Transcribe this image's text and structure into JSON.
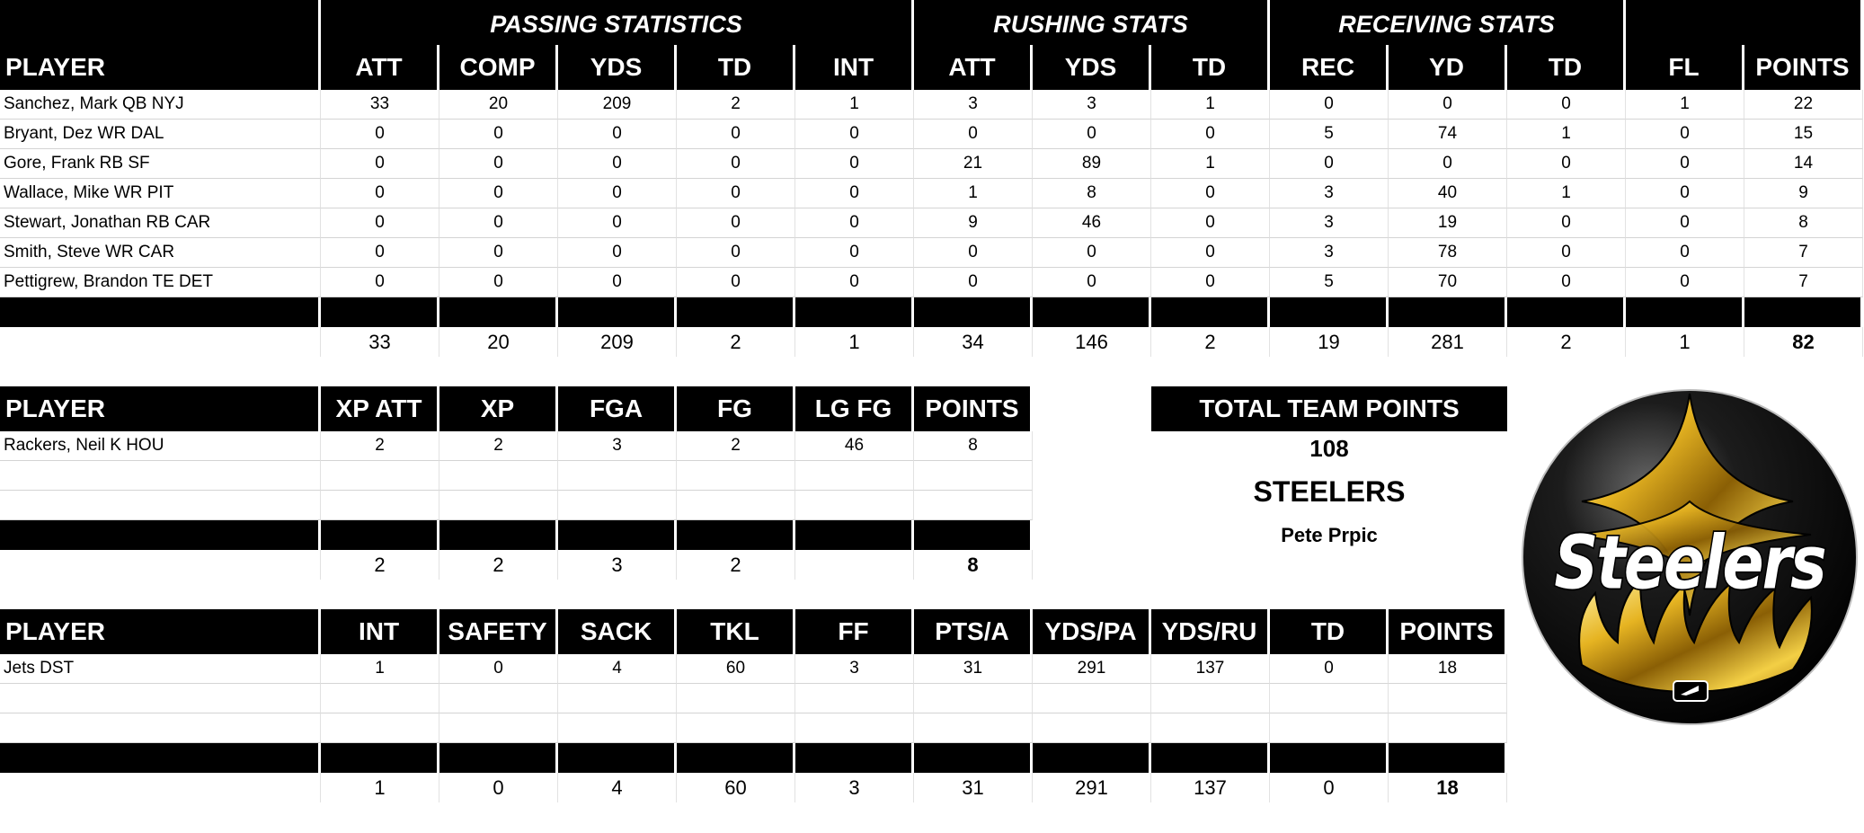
{
  "offense": {
    "groups": {
      "passing": "PASSING STATISTICS",
      "rushing": "RUSHING STATS",
      "receiving": "RECEIVING STATS"
    },
    "headers": [
      "PLAYER",
      "ATT",
      "COMP",
      "YDS",
      "TD",
      "INT",
      "ATT",
      "YDS",
      "TD",
      "REC",
      "YD",
      "TD",
      "FL",
      "POINTS"
    ],
    "rows": [
      {
        "player": "Sanchez, Mark QB NYJ",
        "stats": [
          "33",
          "20",
          "209",
          "2",
          "1",
          "3",
          "3",
          "1",
          "0",
          "0",
          "0",
          "1",
          "22"
        ]
      },
      {
        "player": "Bryant, Dez WR DAL",
        "stats": [
          "0",
          "0",
          "0",
          "0",
          "0",
          "0",
          "0",
          "0",
          "5",
          "74",
          "1",
          "0",
          "15"
        ]
      },
      {
        "player": "Gore, Frank RB SF",
        "stats": [
          "0",
          "0",
          "0",
          "0",
          "0",
          "21",
          "89",
          "1",
          "0",
          "0",
          "0",
          "0",
          "14"
        ]
      },
      {
        "player": "Wallace, Mike WR PIT",
        "stats": [
          "0",
          "0",
          "0",
          "0",
          "0",
          "1",
          "8",
          "0",
          "3",
          "40",
          "1",
          "0",
          "9"
        ]
      },
      {
        "player": "Stewart, Jonathan RB CAR",
        "stats": [
          "0",
          "0",
          "0",
          "0",
          "0",
          "9",
          "46",
          "0",
          "3",
          "19",
          "0",
          "0",
          "8"
        ]
      },
      {
        "player": "Smith, Steve WR CAR",
        "stats": [
          "0",
          "0",
          "0",
          "0",
          "0",
          "0",
          "0",
          "0",
          "3",
          "78",
          "0",
          "0",
          "7"
        ]
      },
      {
        "player": "Pettigrew, Brandon TE DET",
        "stats": [
          "0",
          "0",
          "0",
          "0",
          "0",
          "0",
          "0",
          "0",
          "5",
          "70",
          "0",
          "0",
          "7"
        ]
      }
    ],
    "totals": [
      "33",
      "20",
      "209",
      "2",
      "1",
      "34",
      "146",
      "2",
      "19",
      "281",
      "2",
      "1",
      "82"
    ]
  },
  "kicking": {
    "headers": [
      "PLAYER",
      "XP ATT",
      "XP",
      "FGA",
      "FG",
      "LG FG",
      "POINTS"
    ],
    "rows": [
      {
        "player": "Rackers, Neil K HOU",
        "stats": [
          "2",
          "2",
          "3",
          "2",
          "46",
          "8"
        ]
      },
      {
        "player": "",
        "stats": [
          "",
          "",
          "",
          "",
          "",
          ""
        ]
      },
      {
        "player": "",
        "stats": [
          "",
          "",
          "",
          "",
          "",
          ""
        ]
      }
    ],
    "totals": [
      "2",
      "2",
      "3",
      "2",
      "",
      "8"
    ]
  },
  "defense": {
    "headers": [
      "PLAYER",
      "INT",
      "SAFETY",
      "SACK",
      "TKL",
      "FF",
      "PTS/A",
      "YDS/PA",
      "YDS/RU",
      "TD",
      "POINTS"
    ],
    "rows": [
      {
        "player": "Jets DST",
        "stats": [
          "1",
          "0",
          "4",
          "60",
          "3",
          "31",
          "291",
          "137",
          "0",
          "18"
        ]
      },
      {
        "player": "",
        "stats": [
          "",
          "",
          "",
          "",
          "",
          "",
          "",
          "",
          "",
          ""
        ]
      },
      {
        "player": "",
        "stats": [
          "",
          "",
          "",
          "",
          "",
          "",
          "",
          "",
          "",
          ""
        ]
      }
    ],
    "totals": [
      "1",
      "0",
      "4",
      "60",
      "3",
      "31",
      "291",
      "137",
      "0",
      "18"
    ]
  },
  "team": {
    "title": "TOTAL TEAM POINTS",
    "points": "108",
    "name": "STEELERS",
    "owner": "Pete Prpic"
  },
  "logo": {
    "text": "Steelers",
    "colors": {
      "ring": "#000000",
      "gold": "#d9a820",
      "white": "#ffffff"
    }
  }
}
